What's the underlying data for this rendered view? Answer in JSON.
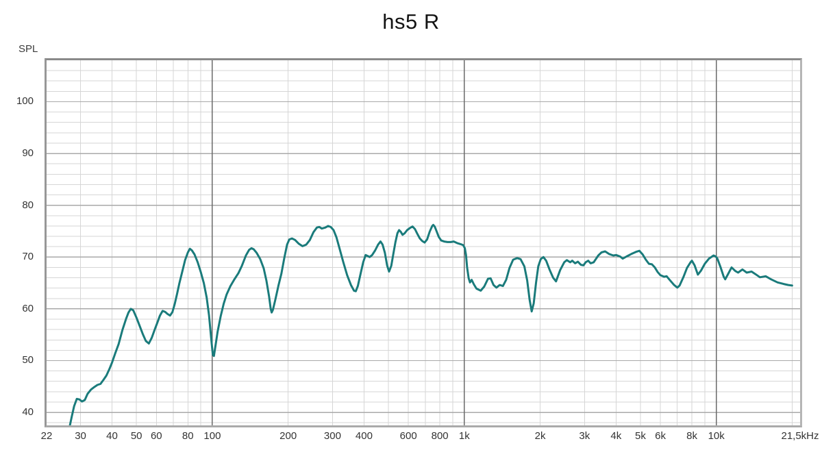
{
  "page_title": "hs5 R",
  "colors": {
    "curve": "#1a7b7b",
    "grid_minor": "#d6d6d6",
    "grid_major_h": "#a9a9a9",
    "grid_decade": "#6a6a6a",
    "text": "#333333",
    "title_text": "#141414",
    "background": "#ffffff"
  },
  "chart_data": {
    "type": "line",
    "title": "hs5 R",
    "ylabel": "SPL",
    "xlabel": "",
    "x_scale": "log",
    "grid": true,
    "legend": "none",
    "x_range_hz": [
      22,
      21500
    ],
    "y_range_db": [
      37.5,
      108
    ],
    "y_major_ticks": [
      40,
      50,
      60,
      70,
      80,
      90,
      100
    ],
    "y_minor_step_db": 2,
    "x_decade_lines": [
      100,
      1000,
      10000
    ],
    "x_minor_lines": [
      30,
      40,
      50,
      60,
      70,
      80,
      90,
      200,
      300,
      400,
      500,
      600,
      700,
      800,
      900,
      2000,
      3000,
      4000,
      5000,
      6000,
      7000,
      8000,
      9000,
      20000
    ],
    "x_tick_labels": [
      {
        "f": 22,
        "label": "22"
      },
      {
        "f": 30,
        "label": "30"
      },
      {
        "f": 40,
        "label": "40"
      },
      {
        "f": 50,
        "label": "50"
      },
      {
        "f": 60,
        "label": "60"
      },
      {
        "f": 80,
        "label": "80"
      },
      {
        "f": 100,
        "label": "100"
      },
      {
        "f": 200,
        "label": "200"
      },
      {
        "f": 300,
        "label": "300"
      },
      {
        "f": 400,
        "label": "400"
      },
      {
        "f": 600,
        "label": "600"
      },
      {
        "f": 800,
        "label": "800"
      },
      {
        "f": 1000,
        "label": "1k"
      },
      {
        "f": 2000,
        "label": "2k"
      },
      {
        "f": 3000,
        "label": "3k"
      },
      {
        "f": 4000,
        "label": "4k"
      },
      {
        "f": 5000,
        "label": "5k"
      },
      {
        "f": 6000,
        "label": "6k"
      },
      {
        "f": 8000,
        "label": "8k"
      },
      {
        "f": 10000,
        "label": "10k"
      },
      {
        "f": 21500,
        "label": "21,5kHz"
      }
    ],
    "series": [
      {
        "name": "hs5 R",
        "points": [
          [
            27.2,
            37.4
          ],
          [
            27.7,
            39.2
          ],
          [
            28.3,
            41.2
          ],
          [
            29,
            42.6
          ],
          [
            29.7,
            42.5
          ],
          [
            30.4,
            42.1
          ],
          [
            31.2,
            42.4
          ],
          [
            32,
            43.6
          ],
          [
            33,
            44.4
          ],
          [
            34,
            44.9
          ],
          [
            35,
            45.3
          ],
          [
            36,
            45.5
          ],
          [
            37,
            46.3
          ],
          [
            38,
            47.1
          ],
          [
            39,
            48.3
          ],
          [
            40,
            49.6
          ],
          [
            41.2,
            51.4
          ],
          [
            42.5,
            53.2
          ],
          [
            44,
            55.9
          ],
          [
            45.5,
            58.1
          ],
          [
            46.5,
            59.3
          ],
          [
            47.5,
            60
          ],
          [
            48.6,
            59.7
          ],
          [
            50,
            58.3
          ],
          [
            51.5,
            56.7
          ],
          [
            53,
            55.1
          ],
          [
            54.5,
            53.8
          ],
          [
            56,
            53.3
          ],
          [
            57.5,
            54.4
          ],
          [
            59,
            55.9
          ],
          [
            60.5,
            57.3
          ],
          [
            62,
            58.7
          ],
          [
            63.5,
            59.6
          ],
          [
            65,
            59.4
          ],
          [
            66.5,
            59
          ],
          [
            68,
            58.7
          ],
          [
            69.5,
            59.4
          ],
          [
            71,
            61
          ],
          [
            72.5,
            62.9
          ],
          [
            74,
            64.9
          ],
          [
            76,
            67.2
          ],
          [
            78,
            69.4
          ],
          [
            80,
            70.9
          ],
          [
            81.5,
            71.6
          ],
          [
            83,
            71.3
          ],
          [
            85,
            70.5
          ],
          [
            87.5,
            69
          ],
          [
            90,
            67.1
          ],
          [
            92.5,
            65
          ],
          [
            95,
            62.2
          ],
          [
            97,
            58.8
          ],
          [
            99,
            54.3
          ],
          [
            100.5,
            51.1
          ],
          [
            101.5,
            50.9
          ],
          [
            103,
            52.9
          ],
          [
            105,
            55.6
          ],
          [
            108,
            58.6
          ],
          [
            111,
            61
          ],
          [
            114,
            62.8
          ],
          [
            118,
            64.4
          ],
          [
            122,
            65.6
          ],
          [
            127,
            66.9
          ],
          [
            131,
            68.3
          ],
          [
            136,
            70.3
          ],
          [
            140,
            71.4
          ],
          [
            143,
            71.7
          ],
          [
            146,
            71.5
          ],
          [
            150,
            70.8
          ],
          [
            155,
            69.6
          ],
          [
            160,
            67.8
          ],
          [
            164,
            65.4
          ],
          [
            168,
            62.4
          ],
          [
            170.5,
            60
          ],
          [
            172,
            59.3
          ],
          [
            174,
            59.8
          ],
          [
            178,
            61.8
          ],
          [
            183,
            64.5
          ],
          [
            188,
            66.8
          ],
          [
            193,
            69.8
          ],
          [
            198,
            72.4
          ],
          [
            202,
            73.4
          ],
          [
            207,
            73.6
          ],
          [
            213,
            73.3
          ],
          [
            220,
            72.6
          ],
          [
            228,
            72.1
          ],
          [
            236,
            72.4
          ],
          [
            244,
            73.3
          ],
          [
            252,
            74.8
          ],
          [
            260,
            75.7
          ],
          [
            266,
            75.8
          ],
          [
            272,
            75.5
          ],
          [
            281,
            75.7
          ],
          [
            288,
            76
          ],
          [
            295,
            75.8
          ],
          [
            303,
            75.2
          ],
          [
            311,
            73.8
          ],
          [
            320,
            71.6
          ],
          [
            331,
            69
          ],
          [
            343,
            66.5
          ],
          [
            355,
            64.6
          ],
          [
            365,
            63.5
          ],
          [
            371,
            63.4
          ],
          [
            378,
            64.4
          ],
          [
            387,
            66.6
          ],
          [
            397,
            69
          ],
          [
            406,
            70.4
          ],
          [
            414,
            70.2
          ],
          [
            421,
            70
          ],
          [
            431,
            70.4
          ],
          [
            443,
            71.3
          ],
          [
            455,
            72.4
          ],
          [
            465,
            73
          ],
          [
            474,
            72.4
          ],
          [
            484,
            70.8
          ],
          [
            494,
            68.4
          ],
          [
            503,
            67.2
          ],
          [
            513,
            68.3
          ],
          [
            523,
            70.6
          ],
          [
            533,
            72.9
          ],
          [
            543,
            74.6
          ],
          [
            551,
            75.2
          ],
          [
            559,
            74.9
          ],
          [
            569,
            74.3
          ],
          [
            580,
            74.6
          ],
          [
            593,
            75.2
          ],
          [
            608,
            75.6
          ],
          [
            623,
            75.9
          ],
          [
            637,
            75.4
          ],
          [
            651,
            74.5
          ],
          [
            666,
            73.6
          ],
          [
            681,
            73.1
          ],
          [
            696,
            72.8
          ],
          [
            712,
            73.4
          ],
          [
            729,
            74.9
          ],
          [
            746,
            76
          ],
          [
            753,
            76.2
          ],
          [
            763,
            75.9
          ],
          [
            776,
            75
          ],
          [
            792,
            73.9
          ],
          [
            810,
            73.2
          ],
          [
            832,
            73
          ],
          [
            858,
            72.9
          ],
          [
            884,
            72.9
          ],
          [
            908,
            73
          ],
          [
            937,
            72.7
          ],
          [
            966,
            72.5
          ],
          [
            990,
            72.3
          ],
          [
            1005,
            71.7
          ],
          [
            1016,
            70.4
          ],
          [
            1026,
            68
          ],
          [
            1041,
            65.9
          ],
          [
            1053,
            65.1
          ],
          [
            1070,
            65.6
          ],
          [
            1092,
            64.7
          ],
          [
            1118,
            63.9
          ],
          [
            1162,
            63.5
          ],
          [
            1200,
            64.3
          ],
          [
            1242,
            65.8
          ],
          [
            1272,
            65.9
          ],
          [
            1306,
            64.6
          ],
          [
            1341,
            64.1
          ],
          [
            1382,
            64.6
          ],
          [
            1423,
            64.4
          ],
          [
            1466,
            65.6
          ],
          [
            1511,
            67.9
          ],
          [
            1562,
            69.5
          ],
          [
            1621,
            69.8
          ],
          [
            1672,
            69.6
          ],
          [
            1731,
            68.2
          ],
          [
            1776,
            65.5
          ],
          [
            1816,
            61.8
          ],
          [
            1851,
            59.5
          ],
          [
            1886,
            61.1
          ],
          [
            1926,
            65
          ],
          [
            1966,
            68.2
          ],
          [
            2010,
            69.6
          ],
          [
            2060,
            70
          ],
          [
            2113,
            69.3
          ],
          [
            2182,
            67.5
          ],
          [
            2252,
            66
          ],
          [
            2312,
            65.3
          ],
          [
            2402,
            67.5
          ],
          [
            2492,
            69
          ],
          [
            2552,
            69.4
          ],
          [
            2632,
            69
          ],
          [
            2682,
            69.3
          ],
          [
            2752,
            68.8
          ],
          [
            2822,
            69.1
          ],
          [
            2902,
            68.5
          ],
          [
            2972,
            68.4
          ],
          [
            3032,
            69
          ],
          [
            3102,
            69.3
          ],
          [
            3172,
            68.8
          ],
          [
            3262,
            69
          ],
          [
            3402,
            70.3
          ],
          [
            3502,
            70.9
          ],
          [
            3622,
            71.1
          ],
          [
            3752,
            70.6
          ],
          [
            3902,
            70.3
          ],
          [
            4002,
            70.4
          ],
          [
            4152,
            70.1
          ],
          [
            4252,
            69.7
          ],
          [
            4402,
            70.1
          ],
          [
            4602,
            70.6
          ],
          [
            4802,
            71
          ],
          [
            4952,
            71.2
          ],
          [
            5102,
            70.5
          ],
          [
            5252,
            69.5
          ],
          [
            5402,
            68.7
          ],
          [
            5552,
            68.6
          ],
          [
            5702,
            68
          ],
          [
            5852,
            67.1
          ],
          [
            6002,
            66.5
          ],
          [
            6202,
            66.2
          ],
          [
            6352,
            66.3
          ],
          [
            6502,
            65.7
          ],
          [
            6802,
            64.6
          ],
          [
            7002,
            64.1
          ],
          [
            7152,
            64.5
          ],
          [
            7402,
            66.1
          ],
          [
            7652,
            67.9
          ],
          [
            7902,
            69
          ],
          [
            8002,
            69.3
          ],
          [
            8202,
            68.4
          ],
          [
            8452,
            66.6
          ],
          [
            8702,
            67.4
          ],
          [
            9002,
            68.7
          ],
          [
            9352,
            69.7
          ],
          [
            9752,
            70.3
          ],
          [
            9952,
            70.1
          ],
          [
            10100,
            69.7
          ],
          [
            10400,
            68
          ],
          [
            10700,
            66.2
          ],
          [
            10850,
            65.7
          ],
          [
            11100,
            66.6
          ],
          [
            11500,
            68
          ],
          [
            11900,
            67.3
          ],
          [
            12200,
            67
          ],
          [
            12700,
            67.6
          ],
          [
            13200,
            67
          ],
          [
            13800,
            67.2
          ],
          [
            14300,
            66.7
          ],
          [
            14900,
            66.1
          ],
          [
            15700,
            66.3
          ],
          [
            16500,
            65.7
          ],
          [
            17500,
            65.1
          ],
          [
            18500,
            64.8
          ],
          [
            19300,
            64.6
          ],
          [
            20000,
            64.5
          ]
        ]
      }
    ]
  }
}
